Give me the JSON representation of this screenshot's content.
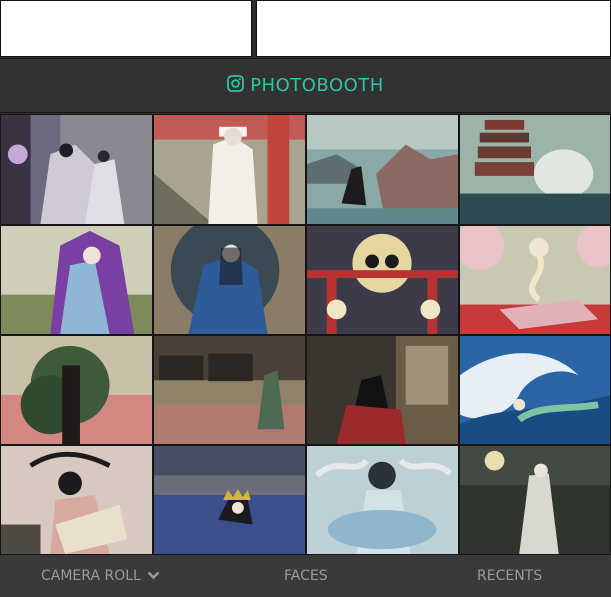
{
  "header": {
    "title": "PHOTOBOOTH",
    "icon": "instagram-icon",
    "accent": "#2ec4a6"
  },
  "photos": [
    {
      "name": "photo-ghost-woman-window"
    },
    {
      "name": "photo-white-robed-figure-shrine"
    },
    {
      "name": "photo-woman-by-sea-rocks"
    },
    {
      "name": "photo-skeleton-pagoda"
    },
    {
      "name": "photo-woman-purple-hood"
    },
    {
      "name": "photo-woman-round-window"
    },
    {
      "name": "photo-cats-torii-moon"
    },
    {
      "name": "photo-long-neck-woman"
    },
    {
      "name": "photo-woman-in-tree"
    },
    {
      "name": "photo-ghost-by-inn"
    },
    {
      "name": "photo-woman-tatami-room"
    },
    {
      "name": "photo-great-wave-serpent"
    },
    {
      "name": "photo-woman-pink-kimono-bridge"
    },
    {
      "name": "photo-crowned-figure-river"
    },
    {
      "name": "photo-spirit-blue-mist"
    },
    {
      "name": "photo-ghost-in-moonlit-forest"
    }
  ],
  "footer": {
    "tabs": [
      {
        "label": "CAMERA ROLL",
        "icon": "chevron-down-icon"
      },
      {
        "label": "FACES"
      },
      {
        "label": "RECENTS"
      }
    ]
  }
}
